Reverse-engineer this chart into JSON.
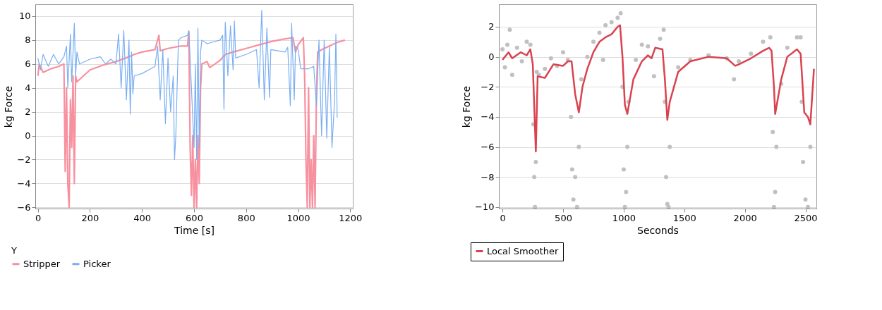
{
  "chart_data": [
    {
      "type": "line",
      "xlabel": "Time [s]",
      "ylabel": "kg Force",
      "legend_title": "Y",
      "legend": "bottom left",
      "grid": "y",
      "xlim": [
        -10,
        1210
      ],
      "xticks": [
        0,
        200,
        400,
        600,
        800,
        1000,
        1200
      ],
      "ylim": [
        -6.1,
        11
      ],
      "yticks": [
        -6,
        -4,
        -2,
        0,
        2,
        4,
        6,
        8,
        10
      ],
      "series": [
        {
          "name": "Stripper",
          "color": "#f8919f",
          "x": [
            0,
            5,
            20,
            50,
            80,
            100,
            105,
            110,
            115,
            120,
            125,
            130,
            135,
            140,
            145,
            150,
            200,
            250,
            300,
            350,
            370,
            400,
            450,
            465,
            470,
            500,
            550,
            575,
            580,
            585,
            590,
            595,
            600,
            605,
            610,
            615,
            620,
            625,
            630,
            650,
            660,
            680,
            700,
            720,
            750,
            800,
            850,
            900,
            950,
            980,
            990,
            1000,
            1020,
            1025,
            1030,
            1035,
            1040,
            1045,
            1050,
            1055,
            1060,
            1065,
            1070,
            1075,
            1100,
            1150,
            1180
          ],
          "values": [
            5.0,
            6.0,
            5.3,
            5.6,
            5.8,
            6.0,
            -3,
            4,
            -4,
            -6,
            3,
            -1,
            5,
            -4,
            5,
            4.5,
            5.5,
            5.9,
            6.2,
            6.6,
            6.8,
            7.0,
            7.2,
            8.4,
            7.1,
            7.3,
            7.5,
            7.5,
            8.7,
            -1,
            -5,
            0,
            -6,
            -2,
            -6,
            0,
            -4,
            4,
            6.0,
            6.2,
            5.7,
            6.0,
            6.3,
            6.8,
            7.0,
            7.3,
            7.6,
            7.9,
            8.1,
            8.2,
            7.0,
            7.6,
            8.2,
            5,
            -2,
            -6,
            4,
            -6,
            -2,
            -6,
            0,
            -6,
            3,
            7,
            7.3,
            7.8,
            8.0
          ]
        },
        {
          "name": "Picker",
          "color": "#7aaff3",
          "x": [
            0,
            10,
            20,
            40,
            60,
            80,
            100,
            110,
            115,
            125,
            130,
            140,
            145,
            150,
            160,
            200,
            240,
            260,
            280,
            300,
            310,
            320,
            330,
            340,
            350,
            355,
            360,
            365,
            370,
            400,
            450,
            460,
            470,
            480,
            490,
            500,
            510,
            520,
            525,
            530,
            540,
            550,
            575,
            580,
            590,
            600,
            605,
            610,
            615,
            620,
            625,
            630,
            650,
            700,
            710,
            715,
            720,
            730,
            740,
            750,
            755,
            760,
            800,
            840,
            850,
            860,
            870,
            880,
            890,
            895,
            950,
            960,
            970,
            975,
            985,
            990,
            1000,
            1010,
            1040,
            1060,
            1070,
            1080,
            1090,
            1100,
            1110,
            1120,
            1130,
            1140,
            1145,
            1150
          ],
          "values": [
            6.5,
            5.5,
            6.8,
            5.8,
            6.8,
            6.0,
            6.6,
            7.5,
            4,
            8.5,
            4.5,
            9.4,
            5,
            7,
            6.0,
            6.4,
            6.6,
            6.0,
            6.4,
            6.0,
            8.5,
            4,
            8.8,
            3,
            8,
            1.8,
            7,
            3.5,
            5,
            5.2,
            5.8,
            7.5,
            3,
            7.2,
            1,
            6.5,
            2,
            5,
            -2,
            0,
            8,
            8.2,
            8.4,
            8.8,
            4,
            -1,
            6,
            -2,
            9,
            -1,
            7,
            8.0,
            7.7,
            8.0,
            8.4,
            2.2,
            9.5,
            5,
            9.2,
            5.5,
            9.6,
            6.5,
            6.8,
            7.2,
            4,
            10.5,
            3,
            9,
            3.2,
            7.2,
            7.0,
            7.4,
            2.5,
            9.4,
            3,
            7.5,
            7.2,
            5.6,
            5.6,
            5.8,
            2.5,
            8,
            0,
            8,
            -0.2,
            7.5,
            -1,
            3,
            8.5,
            1.5
          ]
        }
      ]
    },
    {
      "type": "line",
      "xlabel": "Seconds",
      "ylabel": "kg Force",
      "legend": "bottom left",
      "grid": "y",
      "xlim": [
        -30,
        2590
      ],
      "xticks": [
        0,
        500,
        1000,
        1500,
        2000,
        2500
      ],
      "ylim": [
        -10.1,
        3.5
      ],
      "yticks": [
        -10,
        -8,
        -6,
        -4,
        -2,
        0,
        2
      ],
      "series": [
        {
          "type": "scatter",
          "color": "#c0c0c0",
          "x": [
            0,
            20,
            40,
            60,
            80,
            120,
            160,
            200,
            230,
            255,
            262,
            268,
            275,
            282,
            300,
            350,
            400,
            450,
            500,
            540,
            565,
            575,
            585,
            600,
            615,
            630,
            650,
            700,
            750,
            800,
            830,
            850,
            900,
            950,
            975,
            990,
            1000,
            1010,
            1020,
            1030,
            1040,
            1100,
            1150,
            1200,
            1250,
            1300,
            1330,
            1340,
            1350,
            1360,
            1370,
            1380,
            1450,
            1550,
            1700,
            1850,
            1910,
            1950,
            2050,
            2150,
            2210,
            2230,
            2240,
            2250,
            2260,
            2300,
            2350,
            2430,
            2460,
            2470,
            2480,
            2500,
            2520,
            2540
          ],
          "values": [
            0.5,
            -0.7,
            0.8,
            1.8,
            -1.2,
            0.6,
            -0.3,
            1.0,
            0.8,
            -4.5,
            -8,
            -10,
            -7,
            -1,
            -1.2,
            -0.8,
            -0.1,
            -0.6,
            0.3,
            -0.2,
            -4,
            -7.5,
            -9.5,
            -8,
            -10,
            -6,
            -1.5,
            0.0,
            1.0,
            1.6,
            -0.2,
            2.1,
            2.3,
            2.6,
            2.9,
            -2,
            -7.5,
            -10,
            -9,
            -6,
            -3,
            -0.2,
            0.8,
            0.7,
            -1.3,
            1.2,
            1.8,
            -3,
            -8,
            -9.8,
            -10,
            -6,
            -0.7,
            -0.2,
            0.1,
            -0.1,
            -1.5,
            -0.3,
            0.2,
            1.0,
            1.3,
            -5,
            -10,
            -9,
            -6,
            -1.8,
            0.6,
            1.3,
            1.3,
            -3,
            -7,
            -9.5,
            -10,
            -6
          ]
        },
        {
          "name": "Local Smoother",
          "type": "line",
          "color": "#d9434f",
          "x": [
            0,
            50,
            80,
            150,
            200,
            230,
            250,
            265,
            275,
            290,
            350,
            420,
            500,
            540,
            570,
            600,
            630,
            660,
            700,
            750,
            800,
            850,
            900,
            950,
            970,
            990,
            1010,
            1030,
            1080,
            1150,
            1200,
            1230,
            1260,
            1320,
            1340,
            1360,
            1380,
            1450,
            1550,
            1700,
            1850,
            1920,
            1950,
            2050,
            2150,
            2200,
            2220,
            2240,
            2250,
            2300,
            2350,
            2430,
            2460,
            2490,
            2520,
            2540,
            2570
          ],
          "values": [
            -0.2,
            0.3,
            -0.1,
            0.3,
            0.1,
            0.5,
            -0.5,
            -4,
            -6.3,
            -1.3,
            -1.4,
            -0.5,
            -0.6,
            -0.3,
            -0.3,
            -2.5,
            -3.7,
            -2,
            -0.8,
            0.3,
            1.0,
            1.3,
            1.5,
            2.0,
            2.1,
            0,
            -3.2,
            -3.8,
            -1.5,
            -0.3,
            0.1,
            -0.1,
            0.6,
            0.5,
            -1.5,
            -4.2,
            -3,
            -1.0,
            -0.3,
            0.0,
            -0.1,
            -0.6,
            -0.5,
            -0.1,
            0.4,
            0.6,
            0.4,
            -2,
            -3.8,
            -1.5,
            0.0,
            0.5,
            0.2,
            -3.7,
            -4,
            -4.5,
            -0.8
          ]
        }
      ]
    }
  ]
}
